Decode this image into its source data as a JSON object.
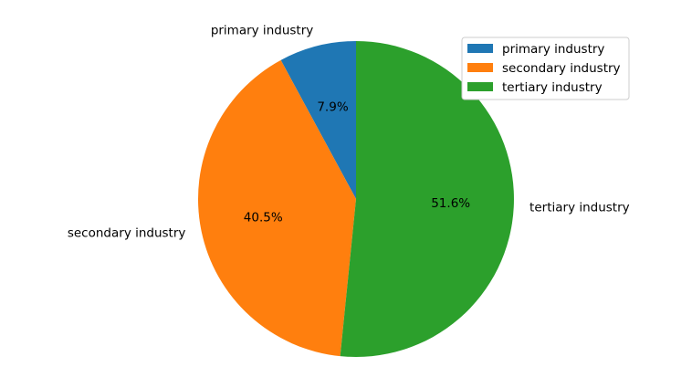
{
  "chart_data": {
    "type": "pie",
    "categories": [
      "primary industry",
      "secondary industry",
      "tertiary industry"
    ],
    "values": [
      7.9,
      40.5,
      51.6
    ],
    "percent_labels": [
      "7.9%",
      "40.5%",
      "51.6%"
    ],
    "colors": [
      "#1f77b4",
      "#ff7f0e",
      "#2ca02c"
    ],
    "start_angle_deg": 90,
    "direction": "counterclockwise",
    "legend": {
      "placement": "upper-right",
      "entries": [
        "primary industry",
        "secondary industry",
        "tertiary industry"
      ]
    }
  }
}
